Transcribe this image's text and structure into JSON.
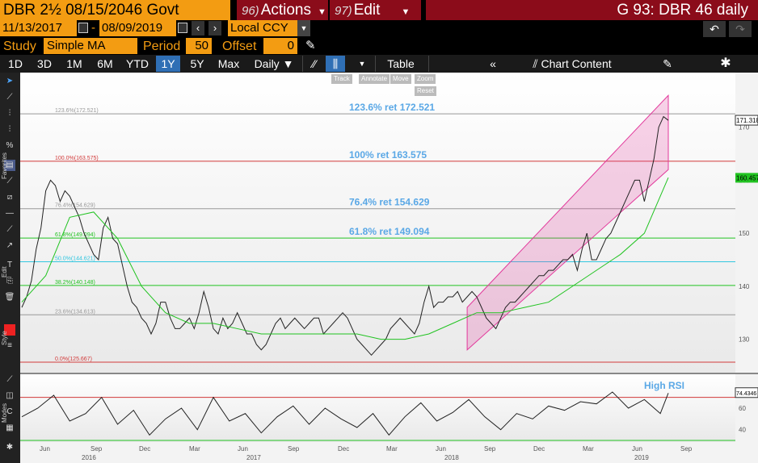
{
  "header": {
    "ticker": "DBR 2½ 08/15/2046 Govt",
    "actions": {
      "num": "96)",
      "label": "Actions"
    },
    "edit": {
      "num": "97)",
      "label": "Edit"
    },
    "title": "G 93: DBR 46 daily"
  },
  "dates": {
    "start": "11/13/2017",
    "sep": "-",
    "end": "08/09/2019",
    "currency": "Local CCY"
  },
  "study": {
    "label": "Study",
    "value": "Simple MA",
    "period_label": "Period",
    "period": "50",
    "offset_label": "Offset",
    "offset": "0"
  },
  "timebar": {
    "ranges": [
      "1D",
      "3D",
      "1M",
      "6M",
      "YTD",
      "1Y",
      "5Y",
      "Max"
    ],
    "active": "1Y",
    "frequency": "Daily",
    "table": "Table",
    "chart_content": "Chart Content"
  },
  "floating": {
    "track": "Track",
    "annotate": "Annotate",
    "move": "Move",
    "zoom": "Zoom",
    "reset": "Reset"
  },
  "side_labels": {
    "favorites": "Favorites",
    "edit": "Edit",
    "style": "Style",
    "modes": "Modes"
  },
  "colors": {
    "accent": "#f39c12",
    "header": "#8b0c1a",
    "active": "#2f6fb5",
    "price": "#222222",
    "ma": "#21c321",
    "channel": "#e2389b"
  },
  "chart_data": {
    "type": "line",
    "price_axis": {
      "ticks": [
        130,
        140,
        150,
        160,
        170
      ],
      "ylim": [
        124,
        180
      ]
    },
    "price_axis_tick_labels": [
      "130",
      "140",
      "150",
      "160",
      "170"
    ],
    "rsi_axis": {
      "ticks": [
        40,
        60
      ],
      "ylim": [
        30,
        90
      ]
    },
    "rsi_axis_tick_labels": [
      "40",
      "60"
    ],
    "x_month_labels": [
      "Jun",
      "Sep",
      "Dec",
      "Mar",
      "Jun",
      "Sep",
      "Dec",
      "Mar",
      "Jun",
      "Sep",
      "Dec",
      "Mar",
      "Jun",
      "Sep"
    ],
    "x_year_labels": [
      "2016",
      "2017",
      "2018",
      "2019"
    ],
    "fib_levels": [
      {
        "label": "123.6%(172.521)",
        "value": 172.521,
        "color": "#999999"
      },
      {
        "label": "100.0%(163.575)",
        "value": 163.575,
        "color": "#d23a3a"
      },
      {
        "label": "76.4%(154.629)",
        "value": 154.629,
        "color": "#999999"
      },
      {
        "label": "61.8%(149.094)",
        "value": 149.094,
        "color": "#21c321"
      },
      {
        "label": "50.0%(144.621)",
        "value": 144.621,
        "color": "#33c7e0"
      },
      {
        "label": "38.2%(140.148)",
        "value": 140.148,
        "color": "#21c321"
      },
      {
        "label": "23.6%(134.613)",
        "value": 134.613,
        "color": "#999999"
      },
      {
        "label": "0.0%(125.667)",
        "value": 125.667,
        "color": "#d23a3a"
      }
    ],
    "annotations": [
      "123.6% ret 172.521",
      "100% ret 163.575",
      "76.4% ret 154.629",
      "61.8% ret 149.094"
    ],
    "last_price": "171.318",
    "last_ma": "160.457",
    "rsi_annotation": "High RSI",
    "rsi_last": "74.4346",
    "rsi_levels": [
      70,
      30
    ],
    "price_series": [
      [
        0,
        136
      ],
      [
        6,
        138
      ],
      [
        12,
        141
      ],
      [
        18,
        147
      ],
      [
        24,
        151
      ],
      [
        30,
        158
      ],
      [
        36,
        160
      ],
      [
        42,
        159
      ],
      [
        48,
        156
      ],
      [
        54,
        158
      ],
      [
        60,
        157
      ],
      [
        66,
        155
      ],
      [
        72,
        153
      ],
      [
        78,
        150
      ],
      [
        84,
        148
      ],
      [
        90,
        146
      ],
      [
        96,
        145
      ],
      [
        102,
        151
      ],
      [
        108,
        153
      ],
      [
        114,
        149
      ],
      [
        120,
        148
      ],
      [
        126,
        144
      ],
      [
        132,
        140
      ],
      [
        138,
        137
      ],
      [
        144,
        136
      ],
      [
        150,
        134
      ],
      [
        156,
        133
      ],
      [
        162,
        131
      ],
      [
        168,
        133
      ],
      [
        174,
        137
      ],
      [
        180,
        137
      ],
      [
        186,
        134
      ],
      [
        192,
        132
      ],
      [
        198,
        132
      ],
      [
        204,
        133
      ],
      [
        210,
        134
      ],
      [
        216,
        132
      ],
      [
        222,
        135
      ],
      [
        228,
        139
      ],
      [
        234,
        136
      ],
      [
        240,
        132
      ],
      [
        246,
        131
      ],
      [
        252,
        134
      ],
      [
        258,
        132
      ],
      [
        264,
        133
      ],
      [
        270,
        135
      ],
      [
        276,
        133
      ],
      [
        282,
        131
      ],
      [
        288,
        131
      ],
      [
        294,
        129
      ],
      [
        300,
        128
      ],
      [
        306,
        129
      ],
      [
        312,
        131
      ],
      [
        318,
        133
      ],
      [
        324,
        134
      ],
      [
        330,
        132
      ],
      [
        336,
        133
      ],
      [
        342,
        134
      ],
      [
        348,
        133
      ],
      [
        354,
        132
      ],
      [
        360,
        133
      ],
      [
        366,
        134
      ],
      [
        372,
        134
      ],
      [
        378,
        131
      ],
      [
        384,
        132
      ],
      [
        390,
        133
      ],
      [
        396,
        134
      ],
      [
        402,
        135
      ],
      [
        408,
        134
      ],
      [
        414,
        132
      ],
      [
        420,
        130
      ],
      [
        426,
        129
      ],
      [
        432,
        128
      ],
      [
        438,
        127
      ],
      [
        444,
        128
      ],
      [
        450,
        129
      ],
      [
        456,
        130
      ],
      [
        462,
        132
      ],
      [
        468,
        133
      ],
      [
        474,
        134
      ],
      [
        480,
        133
      ],
      [
        486,
        132
      ],
      [
        492,
        131
      ],
      [
        498,
        133
      ],
      [
        504,
        137
      ],
      [
        510,
        140
      ],
      [
        516,
        136
      ],
      [
        522,
        137
      ],
      [
        528,
        137
      ],
      [
        534,
        138
      ],
      [
        540,
        138
      ],
      [
        546,
        139
      ],
      [
        552,
        137
      ],
      [
        558,
        138
      ],
      [
        564,
        139
      ],
      [
        570,
        138
      ],
      [
        576,
        136
      ],
      [
        582,
        134
      ],
      [
        588,
        133
      ],
      [
        594,
        132
      ],
      [
        600,
        134
      ],
      [
        606,
        136
      ],
      [
        612,
        137
      ],
      [
        618,
        137
      ],
      [
        624,
        138
      ],
      [
        630,
        139
      ],
      [
        636,
        140
      ],
      [
        642,
        141
      ],
      [
        648,
        142
      ],
      [
        654,
        142
      ],
      [
        660,
        143
      ],
      [
        666,
        143
      ],
      [
        672,
        144
      ],
      [
        678,
        145
      ],
      [
        684,
        145
      ],
      [
        690,
        146
      ],
      [
        696,
        143
      ],
      [
        702,
        147
      ],
      [
        708,
        150
      ],
      [
        714,
        145
      ],
      [
        720,
        145
      ],
      [
        726,
        147
      ],
      [
        732,
        149
      ],
      [
        738,
        150
      ],
      [
        744,
        152
      ],
      [
        750,
        154
      ],
      [
        756,
        156
      ],
      [
        762,
        158
      ],
      [
        768,
        160
      ],
      [
        774,
        160
      ],
      [
        780,
        156
      ],
      [
        786,
        160
      ],
      [
        792,
        164
      ],
      [
        798,
        170
      ],
      [
        804,
        172
      ],
      [
        810,
        171.3
      ]
    ],
    "ma_series": [
      [
        0,
        137
      ],
      [
        30,
        142
      ],
      [
        60,
        153
      ],
      [
        90,
        154
      ],
      [
        120,
        149
      ],
      [
        150,
        140
      ],
      [
        180,
        135
      ],
      [
        210,
        133
      ],
      [
        240,
        133
      ],
      [
        270,
        132
      ],
      [
        300,
        131
      ],
      [
        330,
        131
      ],
      [
        360,
        131
      ],
      [
        390,
        131
      ],
      [
        420,
        131
      ],
      [
        450,
        130
      ],
      [
        480,
        130
      ],
      [
        510,
        131
      ],
      [
        540,
        133
      ],
      [
        570,
        135
      ],
      [
        600,
        135
      ],
      [
        630,
        136
      ],
      [
        660,
        137
      ],
      [
        690,
        140
      ],
      [
        720,
        143
      ],
      [
        750,
        146
      ],
      [
        780,
        150
      ],
      [
        810,
        160.5
      ]
    ],
    "channel": {
      "lower": [
        [
          558,
          128
        ],
        [
          810,
          162
        ]
      ],
      "upper": [
        [
          558,
          136
        ],
        [
          810,
          176
        ]
      ]
    },
    "rsi_series": [
      [
        0,
        52
      ],
      [
        20,
        60
      ],
      [
        40,
        72
      ],
      [
        60,
        48
      ],
      [
        80,
        55
      ],
      [
        100,
        70
      ],
      [
        120,
        45
      ],
      [
        140,
        58
      ],
      [
        160,
        35
      ],
      [
        180,
        50
      ],
      [
        200,
        60
      ],
      [
        220,
        40
      ],
      [
        240,
        70
      ],
      [
        260,
        48
      ],
      [
        280,
        55
      ],
      [
        300,
        37
      ],
      [
        320,
        52
      ],
      [
        340,
        62
      ],
      [
        360,
        45
      ],
      [
        380,
        60
      ],
      [
        400,
        50
      ],
      [
        420,
        42
      ],
      [
        440,
        55
      ],
      [
        460,
        35
      ],
      [
        480,
        52
      ],
      [
        500,
        65
      ],
      [
        520,
        48
      ],
      [
        540,
        56
      ],
      [
        560,
        68
      ],
      [
        580,
        52
      ],
      [
        600,
        40
      ],
      [
        620,
        55
      ],
      [
        640,
        50
      ],
      [
        660,
        62
      ],
      [
        680,
        58
      ],
      [
        700,
        66
      ],
      [
        720,
        64
      ],
      [
        740,
        75
      ],
      [
        760,
        60
      ],
      [
        780,
        68
      ],
      [
        800,
        55
      ],
      [
        810,
        74
      ]
    ]
  }
}
